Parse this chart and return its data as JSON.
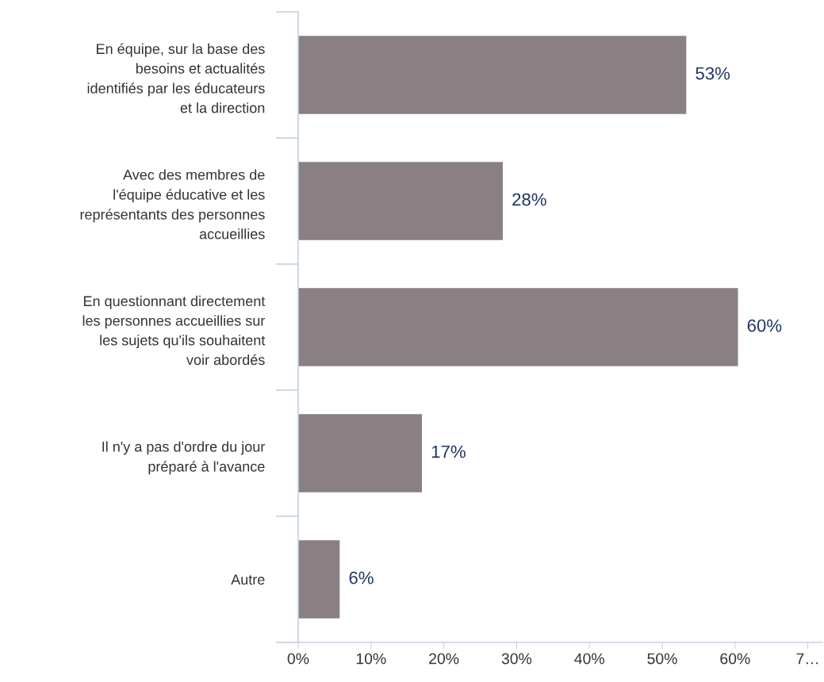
{
  "chart_data": {
    "type": "bar",
    "orientation": "horizontal",
    "categories": [
      "En équipe, sur la base des\nbesoins et actualités\nidentifiés par les éducateurs\net la direction",
      "Avec des membres de\nl'équipe éducative et les\nreprésentants des personnes\naccueillies",
      "En questionnant directement\nles personnes accueillies sur\nles sujets qu'ils souhaitent\nvoir abordés",
      "Il n'y a pas d'ordre du jour\npréparé à l'avance",
      "Autre"
    ],
    "values": [
      53.3,
      28.1,
      60.4,
      17,
      5.7
    ],
    "value_labels": [
      "53%",
      "28%",
      "60%",
      "17%",
      "6%"
    ],
    "color": "#8a7f83",
    "xlim": [
      0,
      72
    ],
    "xticks": [
      {
        "value": 0,
        "label": "0%"
      },
      {
        "value": 10,
        "label": "10%"
      },
      {
        "value": 20,
        "label": "20%"
      },
      {
        "value": 30,
        "label": "30%"
      },
      {
        "value": 40,
        "label": "40%"
      },
      {
        "value": 50,
        "label": "50%"
      },
      {
        "value": 60,
        "label": "60%"
      },
      {
        "value": 70,
        "label": "7…"
      }
    ],
    "grid": false,
    "legend": false
  }
}
